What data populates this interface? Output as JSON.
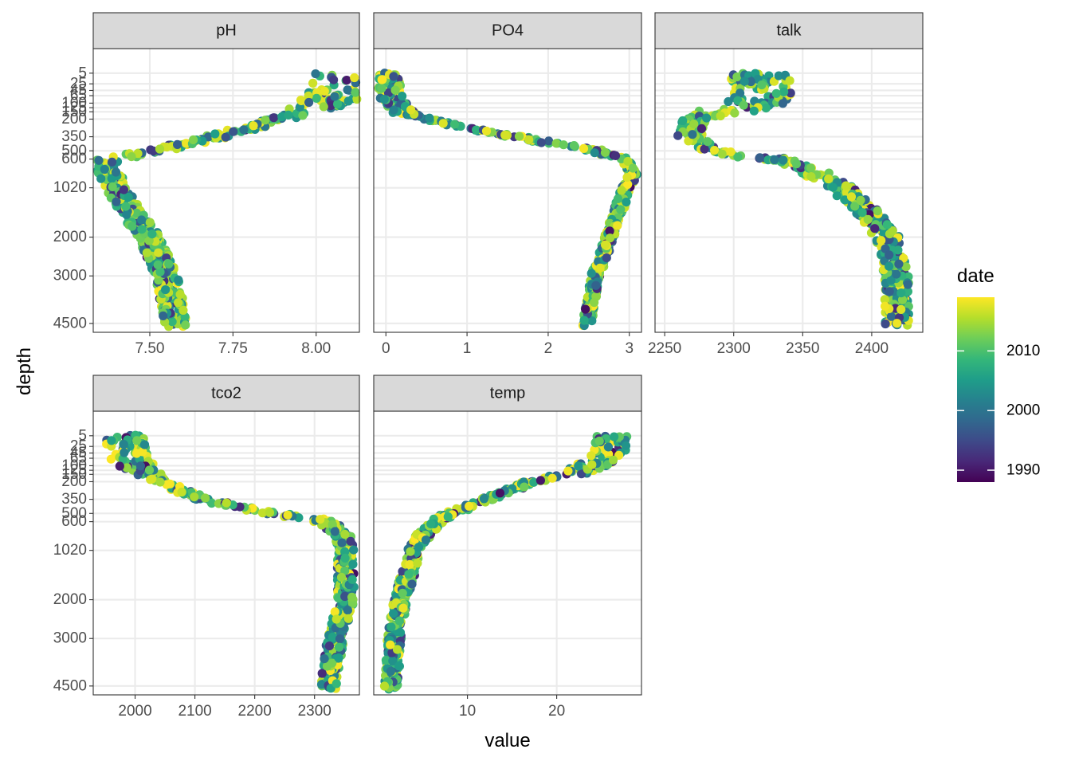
{
  "chart_data": {
    "type": "scatter",
    "facet_layout": "wrap",
    "xlabel": "value",
    "ylabel": "depth",
    "y_scale": "reverse-sqrt",
    "y_range": [
      0,
      4700
    ],
    "y_ticks": [
      5,
      25,
      45,
      65,
      100,
      125,
      150,
      200,
      350,
      500,
      600,
      1020,
      2000,
      3000,
      4500
    ],
    "y_tick_labels": [
      "5",
      "25",
      "45",
      "65",
      "100",
      "125",
      "150",
      "200",
      "350",
      "500",
      "600",
      "1020",
      "2000",
      "3000",
      "4500"
    ],
    "color_legend": {
      "title": "date",
      "scale": "viridis",
      "range": [
        1988,
        2019
      ],
      "breaks": [
        1990,
        2000,
        2010
      ],
      "break_labels": [
        "1990",
        "2000",
        "2010"
      ],
      "colors": [
        "#440154",
        "#482878",
        "#3e4a89",
        "#31688e",
        "#26828e",
        "#1f9e89",
        "#35b779",
        "#6ece58",
        "#b5de2b",
        "#fde725"
      ]
    },
    "panels": [
      {
        "strip": "pH",
        "xlim": [
          7.33,
          8.13
        ],
        "x_ticks": [
          7.5,
          7.75,
          8.0
        ],
        "x_tick_labels": [
          "7.50",
          "7.75",
          "8.00"
        ],
        "profile": [
          [
            5,
            8.08
          ],
          [
            25,
            8.07
          ],
          [
            65,
            8.05
          ],
          [
            100,
            8.03
          ],
          [
            150,
            7.97
          ],
          [
            200,
            7.88
          ],
          [
            350,
            7.7
          ],
          [
            500,
            7.5
          ],
          [
            600,
            7.38
          ],
          [
            700,
            7.36
          ],
          [
            800,
            7.38
          ],
          [
            1020,
            7.4
          ],
          [
            1500,
            7.45
          ],
          [
            2000,
            7.5
          ],
          [
            3000,
            7.55
          ],
          [
            4500,
            7.58
          ]
        ],
        "spread": 0.035
      },
      {
        "strip": "PO4",
        "xlim": [
          -0.15,
          3.15
        ],
        "x_ticks": [
          0,
          1,
          2,
          3
        ],
        "x_tick_labels": [
          "0",
          "1",
          "2",
          "3"
        ],
        "profile": [
          [
            5,
            0.05
          ],
          [
            25,
            0.05
          ],
          [
            65,
            0.06
          ],
          [
            100,
            0.1
          ],
          [
            150,
            0.2
          ],
          [
            200,
            0.5
          ],
          [
            350,
            1.6
          ],
          [
            500,
            2.6
          ],
          [
            600,
            2.95
          ],
          [
            800,
            3.05
          ],
          [
            1020,
            2.95
          ],
          [
            2000,
            2.75
          ],
          [
            3000,
            2.58
          ],
          [
            4500,
            2.48
          ]
        ],
        "spread": 0.06
      },
      {
        "strip": "talk",
        "xlim": [
          2243,
          2437
        ],
        "x_ticks": [
          2250,
          2300,
          2350,
          2400
        ],
        "x_tick_labels": [
          "2250",
          "2300",
          "2350",
          "2400"
        ],
        "profile": [
          [
            5,
            2318
          ],
          [
            25,
            2322
          ],
          [
            65,
            2322
          ],
          [
            100,
            2315
          ],
          [
            150,
            2290
          ],
          [
            200,
            2272
          ],
          [
            350,
            2268
          ],
          [
            500,
            2285
          ],
          [
            600,
            2330
          ],
          [
            800,
            2360
          ],
          [
            1020,
            2378
          ],
          [
            1500,
            2398
          ],
          [
            2000,
            2412
          ],
          [
            3000,
            2418
          ],
          [
            4500,
            2418
          ]
        ],
        "spread": 9
      },
      {
        "strip": "tco2",
        "xlim": [
          1930,
          2375
        ],
        "x_ticks": [
          2000,
          2100,
          2200,
          2300
        ],
        "x_tick_labels": [
          "2000",
          "2100",
          "2200",
          "2300"
        ],
        "profile": [
          [
            5,
            1985
          ],
          [
            25,
            1985
          ],
          [
            65,
            1990
          ],
          [
            100,
            2005
          ],
          [
            150,
            2025
          ],
          [
            200,
            2050
          ],
          [
            350,
            2110
          ],
          [
            500,
            2230
          ],
          [
            600,
            2320
          ],
          [
            800,
            2348
          ],
          [
            1020,
            2352
          ],
          [
            2000,
            2352
          ],
          [
            3000,
            2335
          ],
          [
            4500,
            2322
          ]
        ],
        "spread": 14
      },
      {
        "strip": "temp",
        "xlim": [
          -0.5,
          29.5
        ],
        "x_ticks": [
          10,
          20
        ],
        "x_tick_labels": [
          "10",
          "20"
        ],
        "profile": [
          [
            5,
            26
          ],
          [
            25,
            26
          ],
          [
            65,
            25.5
          ],
          [
            100,
            24
          ],
          [
            150,
            21
          ],
          [
            200,
            17
          ],
          [
            350,
            12
          ],
          [
            500,
            8
          ],
          [
            600,
            6.5
          ],
          [
            800,
            5
          ],
          [
            1020,
            4
          ],
          [
            2000,
            2.5
          ],
          [
            3000,
            1.8
          ],
          [
            4500,
            1.5
          ]
        ],
        "spread": 0.8
      }
    ]
  }
}
